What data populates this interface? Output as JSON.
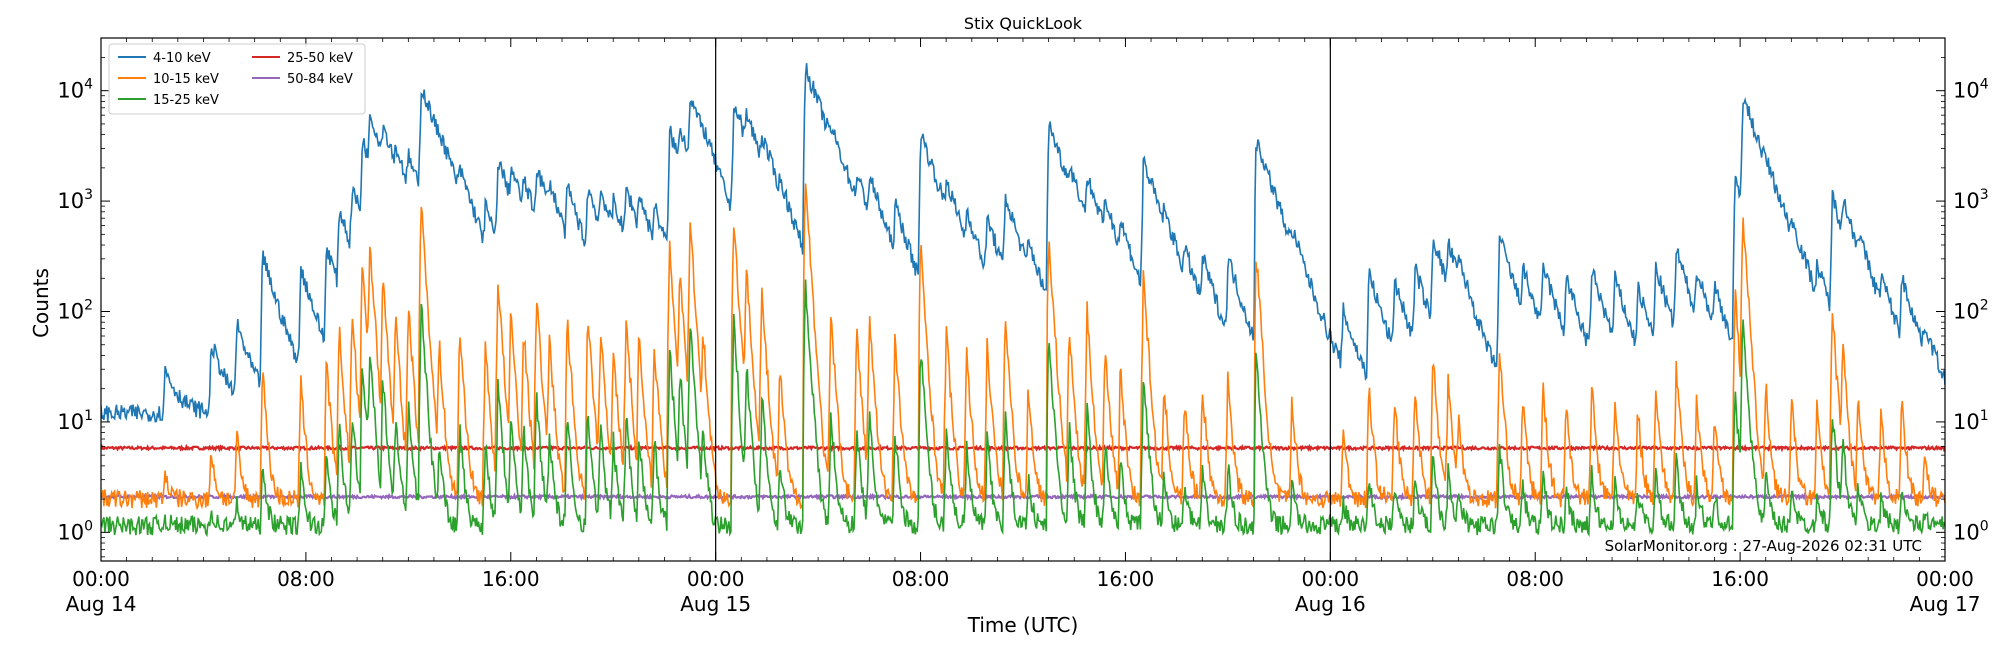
{
  "chart_data": {
    "type": "line",
    "title": "Stix QuickLook",
    "xlabel": "Time (UTC)",
    "ylabel": "Counts",
    "yscale": "log",
    "ylim": [
      0.55,
      30000
    ],
    "y_ticks": [
      {
        "base": "10",
        "exp": "0"
      },
      {
        "base": "10",
        "exp": "1"
      },
      {
        "base": "10",
        "exp": "2"
      },
      {
        "base": "10",
        "exp": "3"
      },
      {
        "base": "10",
        "exp": "4"
      }
    ],
    "x_range_hours": [
      0,
      72
    ],
    "x_ticks": [
      {
        "hours": 0,
        "time": "00:00",
        "date": "Aug 14"
      },
      {
        "hours": 8,
        "time": "08:00",
        "date": ""
      },
      {
        "hours": 16,
        "time": "16:00",
        "date": ""
      },
      {
        "hours": 24,
        "time": "00:00",
        "date": "Aug 15"
      },
      {
        "hours": 32,
        "time": "08:00",
        "date": ""
      },
      {
        "hours": 40,
        "time": "16:00",
        "date": ""
      },
      {
        "hours": 48,
        "time": "00:00",
        "date": "Aug 16"
      },
      {
        "hours": 56,
        "time": "08:00",
        "date": ""
      },
      {
        "hours": 64,
        "time": "16:00",
        "date": ""
      },
      {
        "hours": 72,
        "time": "00:00",
        "date": "Aug 17"
      }
    ],
    "day_boundaries_hours": [
      24,
      48
    ],
    "legend_position": "top-left",
    "annotation": "SolarMonitor.org : 27-Aug-2026 02:31 UTC",
    "flares": [
      {
        "t": 2.5,
        "peak": 18
      },
      {
        "t": 4.3,
        "peak": 40
      },
      {
        "t": 5.3,
        "peak": 60
      },
      {
        "t": 6.3,
        "peak": 300
      },
      {
        "t": 7.8,
        "peak": 220
      },
      {
        "t": 8.8,
        "peak": 350
      },
      {
        "t": 9.3,
        "peak": 700
      },
      {
        "t": 9.8,
        "peak": 1000
      },
      {
        "t": 10.2,
        "peak": 3000
      },
      {
        "t": 10.5,
        "peak": 4000
      },
      {
        "t": 11.0,
        "peak": 2200
      },
      {
        "t": 11.5,
        "peak": 900
      },
      {
        "t": 12.0,
        "peak": 1200
      },
      {
        "t": 12.5,
        "peak": 10000
      },
      {
        "t": 13.2,
        "peak": 500
      },
      {
        "t": 14.0,
        "peak": 700
      },
      {
        "t": 15.0,
        "peak": 500
      },
      {
        "t": 15.5,
        "peak": 2000
      },
      {
        "t": 16.0,
        "peak": 1000
      },
      {
        "t": 16.5,
        "peak": 700
      },
      {
        "t": 17.0,
        "peak": 1400
      },
      {
        "t": 17.5,
        "peak": 600
      },
      {
        "t": 18.2,
        "peak": 900
      },
      {
        "t": 19.0,
        "peak": 1000
      },
      {
        "t": 19.5,
        "peak": 700
      },
      {
        "t": 20.0,
        "peak": 500
      },
      {
        "t": 20.5,
        "peak": 900
      },
      {
        "t": 21.0,
        "peak": 600
      },
      {
        "t": 21.6,
        "peak": 500
      },
      {
        "t": 22.2,
        "peak": 4000
      },
      {
        "t": 22.6,
        "peak": 2500
      },
      {
        "t": 23.0,
        "peak": 6500
      },
      {
        "t": 23.5,
        "peak": 600
      },
      {
        "t": 24.7,
        "peak": 7000
      },
      {
        "t": 25.2,
        "peak": 2600
      },
      {
        "t": 25.8,
        "peak": 1500
      },
      {
        "t": 26.5,
        "peak": 300
      },
      {
        "t": 27.5,
        "peak": 16000
      },
      {
        "t": 28.5,
        "peak": 900
      },
      {
        "t": 29.5,
        "peak": 700
      },
      {
        "t": 30.0,
        "peak": 900
      },
      {
        "t": 31.0,
        "peak": 600
      },
      {
        "t": 32.0,
        "peak": 4000
      },
      {
        "t": 33.0,
        "peak": 700
      },
      {
        "t": 33.8,
        "peak": 400
      },
      {
        "t": 34.6,
        "peak": 500
      },
      {
        "t": 35.3,
        "peak": 900
      },
      {
        "t": 36.2,
        "peak": 200
      },
      {
        "t": 37.0,
        "peak": 5000
      },
      {
        "t": 37.8,
        "peak": 700
      },
      {
        "t": 38.5,
        "peak": 1000
      },
      {
        "t": 39.2,
        "peak": 500
      },
      {
        "t": 39.8,
        "peak": 300
      },
      {
        "t": 40.7,
        "peak": 2200
      },
      {
        "t": 41.5,
        "peak": 200
      },
      {
        "t": 42.3,
        "peak": 150
      },
      {
        "t": 43.0,
        "peak": 200
      },
      {
        "t": 44.0,
        "peak": 250
      },
      {
        "t": 45.1,
        "peak": 3600
      },
      {
        "t": 46.5,
        "peak": 150
      },
      {
        "t": 48.5,
        "peak": 70
      },
      {
        "t": 49.5,
        "peak": 200
      },
      {
        "t": 50.5,
        "peak": 150
      },
      {
        "t": 51.3,
        "peak": 200
      },
      {
        "t": 52.0,
        "peak": 400
      },
      {
        "t": 52.6,
        "peak": 250
      },
      {
        "t": 53.0,
        "peak": 100
      },
      {
        "t": 54.6,
        "peak": 450
      },
      {
        "t": 55.5,
        "peak": 150
      },
      {
        "t": 56.3,
        "peak": 200
      },
      {
        "t": 57.2,
        "peak": 150
      },
      {
        "t": 58.2,
        "peak": 200
      },
      {
        "t": 59.1,
        "peak": 150
      },
      {
        "t": 60.0,
        "peak": 120
      },
      {
        "t": 60.7,
        "peak": 200
      },
      {
        "t": 61.5,
        "peak": 300
      },
      {
        "t": 62.3,
        "peak": 150
      },
      {
        "t": 63.0,
        "peak": 100
      },
      {
        "t": 63.8,
        "peak": 1500
      },
      {
        "t": 64.1,
        "peak": 8000
      },
      {
        "t": 65.0,
        "peak": 200
      },
      {
        "t": 66.0,
        "peak": 150
      },
      {
        "t": 67.0,
        "peak": 120
      },
      {
        "t": 67.6,
        "peak": 1000
      },
      {
        "t": 68.0,
        "peak": 500
      },
      {
        "t": 68.6,
        "peak": 150
      },
      {
        "t": 69.5,
        "peak": 100
      },
      {
        "t": 70.3,
        "peak": 150
      },
      {
        "t": 71.2,
        "peak": 30
      }
    ],
    "series": [
      {
        "name": "4-10 keV",
        "color": "#1f77b4",
        "baseline": 12,
        "peak_factor": 1.0,
        "noise": 0.18,
        "type": "base"
      },
      {
        "name": "10-15 keV",
        "color": "#ff7f0e",
        "baseline": 2.0,
        "peak_factor": 0.1,
        "noise": 0.2,
        "type": "spiky"
      },
      {
        "name": "15-25 keV",
        "color": "#2ca02c",
        "baseline": 1.15,
        "peak_factor": 0.012,
        "noise": 0.2,
        "type": "spiky"
      },
      {
        "name": "25-50 keV",
        "color": "#d62728",
        "baseline": 5.8,
        "peak_factor": 0,
        "noise": 0.03,
        "type": "flat"
      },
      {
        "name": "50-84 keV",
        "color": "#9467bd",
        "baseline": 2.1,
        "peak_factor": 0,
        "noise": 0.03,
        "type": "flat"
      }
    ]
  }
}
